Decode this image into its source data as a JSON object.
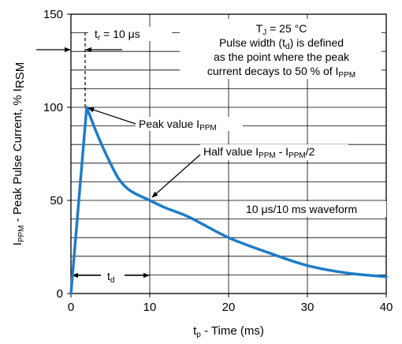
{
  "chart_data": {
    "type": "line",
    "xlabel": {
      "main": "t",
      "sub": "p",
      "rest": " - Time (ms)"
    },
    "ylabel": {
      "pre": "I",
      "sub": "PPM",
      "rest": " - Peak Pulse Current, % I",
      "sub2": "RSM"
    },
    "xlim": [
      0,
      40
    ],
    "ylim": [
      0,
      150
    ],
    "x_ticks": [
      "0",
      "10",
      "20",
      "30",
      "40"
    ],
    "y_ticks": [
      "0",
      "50",
      "100",
      "150"
    ],
    "grid": true,
    "series_color": "#1f7cc8",
    "series": [
      {
        "x": [
          0,
          2,
          3,
          4,
          5,
          6,
          7,
          8,
          10,
          12,
          15,
          20,
          25,
          30,
          35,
          40
        ],
        "y": [
          0,
          100,
          89,
          79,
          70,
          62,
          57,
          54,
          50,
          46,
          41,
          30,
          22,
          15,
          11,
          9
        ]
      }
    ],
    "annotations": {
      "tj": {
        "pre": "T",
        "sub": "J",
        "rest": " = 25 °C"
      },
      "pulse_width": {
        "pre": "Pulse width (t",
        "sub": "d",
        "rest": ") is defined"
      },
      "as_point": "as the point where the peak",
      "decays": {
        "pre": "current decays to 50 % of I",
        "sub": "PPM"
      },
      "tr": {
        "pre": "t",
        "sub": "r",
        "rest": " = 10 μs"
      },
      "peak": {
        "pre": "Peak value I",
        "sub": "PPM"
      },
      "half": {
        "pre": "Half value I",
        "sub": "PPM",
        "mid": " - I",
        "sub2": "PPM",
        "rest": "/2"
      },
      "waveform": "10 μs/10 ms waveform",
      "td": {
        "pre": "t",
        "sub": "d"
      }
    }
  }
}
